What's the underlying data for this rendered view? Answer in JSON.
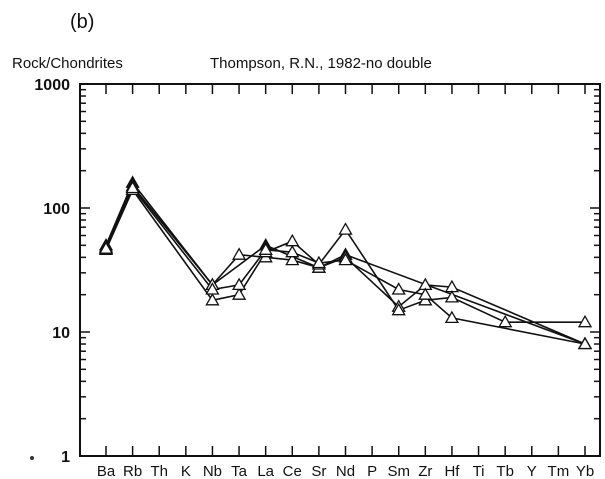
{
  "chart_data": {
    "type": "line",
    "panel_label": "(b)",
    "title": "Thompson, R.N., 1982-no double",
    "ylabel": "Rock/Chondrites",
    "xlabel": "",
    "yscale": "log",
    "ylim": [
      1,
      1000
    ],
    "ytick_labels": [
      "1",
      "10",
      "100",
      "1000"
    ],
    "categories": [
      "Ba",
      "Rb",
      "Th",
      "K",
      "Nb",
      "Ta",
      "La",
      "Ce",
      "Sr",
      "Nd",
      "P",
      "Sm",
      "Zr",
      "Hf",
      "Ti",
      "Tb",
      "Y",
      "Tm",
      "Yb"
    ],
    "series": [
      {
        "marker": "filled-triangle",
        "values": [
          50,
          160,
          null,
          null,
          24,
          null,
          50,
          null,
          33,
          42,
          null,
          null,
          null,
          null,
          null,
          null,
          null,
          null,
          8
        ]
      },
      {
        "marker": "open-triangle",
        "values": [
          48,
          150,
          null,
          null,
          24,
          42,
          40,
          38,
          33,
          40,
          null,
          16,
          24,
          23,
          null,
          null,
          null,
          null,
          8
        ]
      },
      {
        "marker": "open-triangle",
        "values": [
          46,
          140,
          null,
          null,
          18,
          20,
          44,
          54,
          35,
          67,
          null,
          15,
          18,
          19,
          null,
          12,
          null,
          null,
          12
        ]
      },
      {
        "marker": "open-triangle",
        "values": [
          47,
          145,
          null,
          null,
          22,
          24,
          46,
          44,
          36,
          38,
          null,
          22,
          20,
          13,
          null,
          null,
          null,
          null,
          8
        ]
      }
    ],
    "grid": false,
    "legend": "none"
  }
}
